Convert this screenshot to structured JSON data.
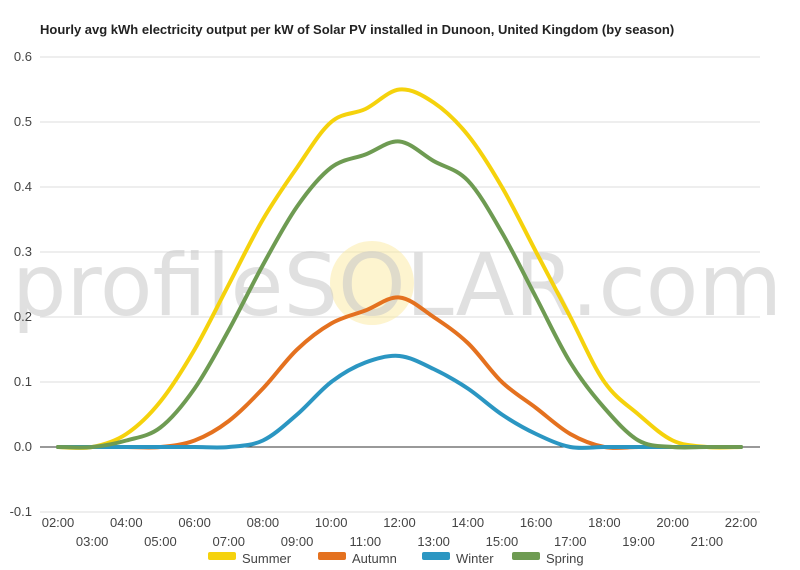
{
  "chart_data": {
    "type": "line",
    "title": "Hourly avg kWh electricity output per kW of Solar PV installed in Dunoon, United Kingdom (by season)",
    "xlabel": "",
    "ylabel": "",
    "ylim": [
      -0.1,
      0.6
    ],
    "yticks": [
      -0.1,
      0.0,
      0.1,
      0.2,
      0.3,
      0.4,
      0.5,
      0.6
    ],
    "ytick_labels": [
      "-0.1",
      "0.0",
      "0.1",
      "0.2",
      "0.3",
      "0.4",
      "0.5",
      "0.6"
    ],
    "x": [
      "02:00",
      "03:00",
      "04:00",
      "05:00",
      "06:00",
      "07:00",
      "08:00",
      "09:00",
      "10:00",
      "11:00",
      "12:00",
      "13:00",
      "14:00",
      "15:00",
      "16:00",
      "17:00",
      "18:00",
      "19:00",
      "20:00",
      "21:00",
      "22:00"
    ],
    "grid": true,
    "legend_position": "bottom",
    "watermark": "profileSOLAR.com",
    "series": [
      {
        "name": "Summer",
        "color": "#f5d20c",
        "values": [
          0.0,
          0.0,
          0.02,
          0.07,
          0.15,
          0.25,
          0.35,
          0.43,
          0.5,
          0.52,
          0.55,
          0.53,
          0.48,
          0.4,
          0.3,
          0.2,
          0.1,
          0.05,
          0.01,
          0.0,
          0.0
        ]
      },
      {
        "name": "Autumn",
        "color": "#e4711f",
        "values": [
          0.0,
          0.0,
          0.0,
          0.0,
          0.01,
          0.04,
          0.09,
          0.15,
          0.19,
          0.21,
          0.23,
          0.2,
          0.16,
          0.1,
          0.06,
          0.02,
          0.0,
          0.0,
          0.0,
          0.0,
          0.0
        ]
      },
      {
        "name": "Winter",
        "color": "#2b96c2",
        "values": [
          0.0,
          0.0,
          0.0,
          0.0,
          0.0,
          0.0,
          0.01,
          0.05,
          0.1,
          0.13,
          0.14,
          0.12,
          0.09,
          0.05,
          0.02,
          0.0,
          0.0,
          0.0,
          0.0,
          0.0,
          0.0
        ]
      },
      {
        "name": "Spring",
        "color": "#6e9b52",
        "values": [
          0.0,
          0.0,
          0.01,
          0.03,
          0.09,
          0.18,
          0.28,
          0.37,
          0.43,
          0.45,
          0.47,
          0.44,
          0.41,
          0.33,
          0.23,
          0.13,
          0.06,
          0.01,
          0.0,
          0.0,
          0.0
        ]
      }
    ]
  }
}
